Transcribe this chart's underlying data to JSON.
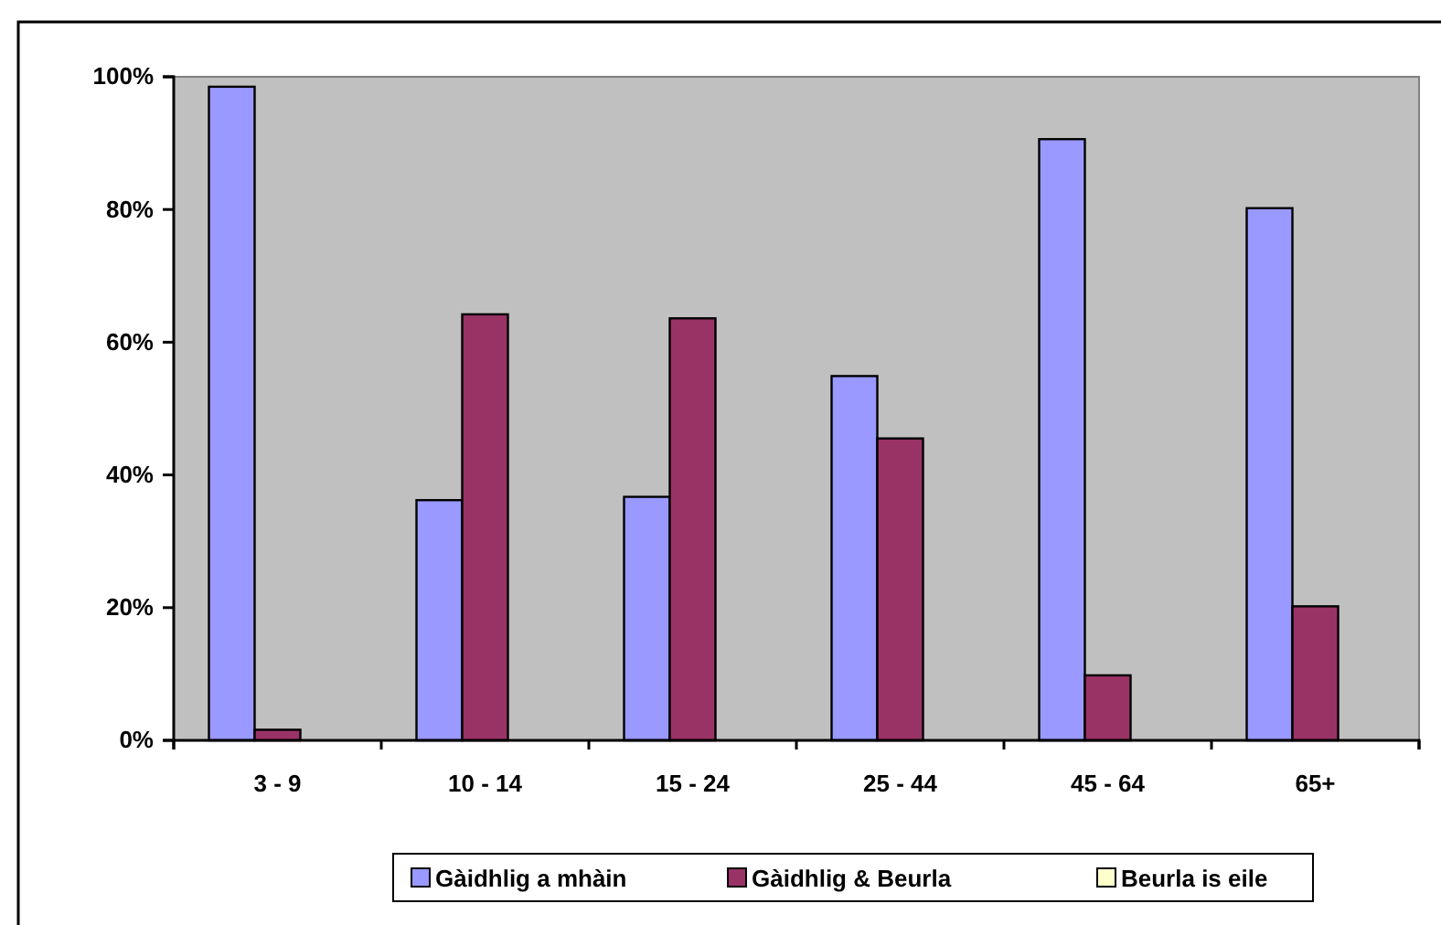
{
  "chart_data": {
    "type": "bar",
    "categories": [
      "3 - 9",
      "10 - 14",
      "15 - 24",
      "25 - 44",
      "45 - 64",
      "65+"
    ],
    "series": [
      {
        "name": "Gàidhlig a mhàin",
        "color": "#9999ff",
        "values": [
          98.5,
          36.2,
          36.7,
          54.9,
          90.6,
          80.2
        ]
      },
      {
        "name": "Gàidhlig & Beurla",
        "color": "#993366",
        "values": [
          1.6,
          64.2,
          63.6,
          45.5,
          9.8,
          20.2
        ]
      },
      {
        "name": "Beurla is eile",
        "color": "#ffffcc",
        "values": [
          0,
          0,
          0,
          0,
          0,
          0
        ]
      }
    ],
    "ylim": [
      0,
      100
    ],
    "yticks": [
      {
        "value": 0,
        "label": "0%"
      },
      {
        "value": 20,
        "label": "20%"
      },
      {
        "value": 40,
        "label": "40%"
      },
      {
        "value": 60,
        "label": "60%"
      },
      {
        "value": 80,
        "label": "80%"
      },
      {
        "value": 100,
        "label": "100%"
      }
    ],
    "grid": false,
    "legend": "bottom"
  }
}
